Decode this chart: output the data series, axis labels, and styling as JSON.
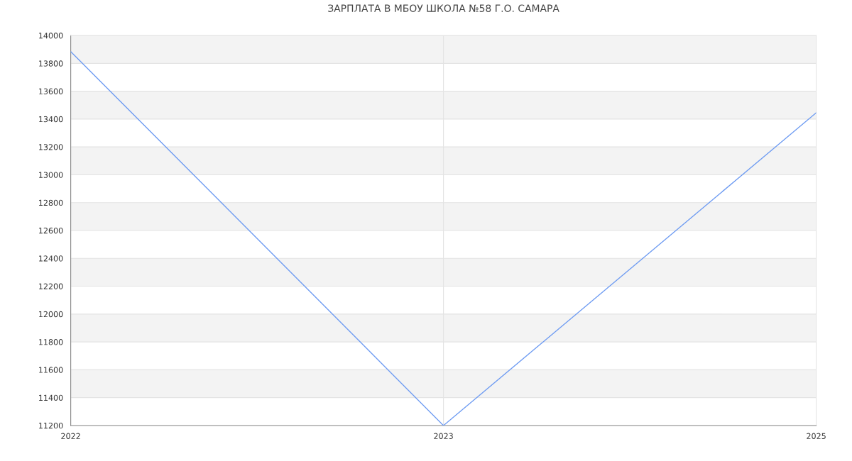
{
  "chart_data": {
    "type": "line",
    "title": "ЗАРПЛАТА В МБОУ ШКОЛА №58 Г.О. САМАРА",
    "categories": [
      "2022",
      "2023",
      "2025"
    ],
    "series": [
      {
        "color": "#6f9cf2",
        "values": [
          13885,
          11200,
          13445
        ]
      }
    ],
    "ylim": [
      11200,
      14000
    ],
    "yticks": [
      11200,
      11400,
      11600,
      11800,
      12000,
      12200,
      12400,
      12600,
      12800,
      13000,
      13200,
      13400,
      13600,
      13800,
      14000
    ],
    "grid": true,
    "marker": "none",
    "line_style": "solid"
  }
}
